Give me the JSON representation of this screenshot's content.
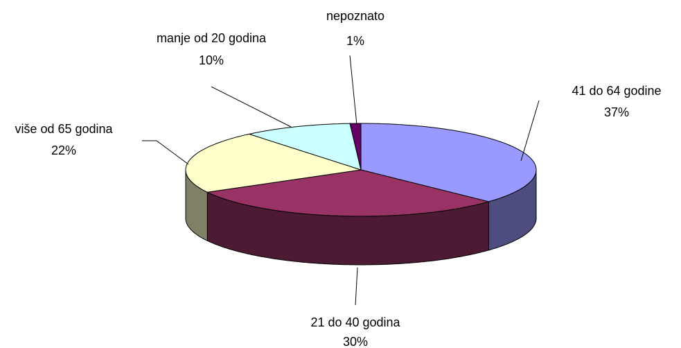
{
  "chart_data": {
    "type": "pie",
    "categories": [
      "41 do 64 godine",
      "21 do 40 godina",
      "više od 65 godina",
      "manje od 20 godina",
      "nepoznato"
    ],
    "values": [
      37,
      30,
      22,
      10,
      1
    ],
    "value_labels": [
      "37%",
      "30%",
      "22%",
      "10%",
      "1%"
    ],
    "colors": [
      "#9999ff",
      "#993366",
      "#ffffcc",
      "#ccffff",
      "#660066"
    ]
  }
}
